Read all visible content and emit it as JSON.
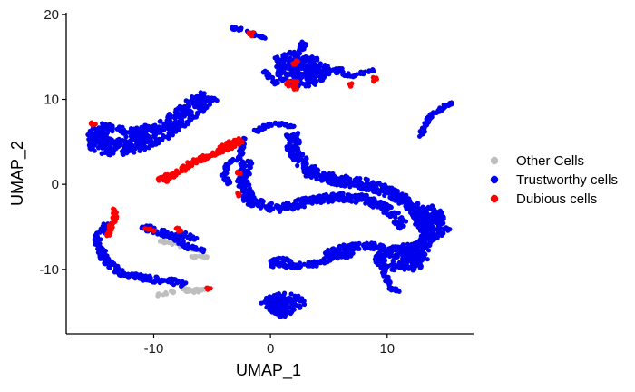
{
  "chart_data": {
    "type": "scatter",
    "title": "",
    "xlabel": "UMAP_1",
    "ylabel": "UMAP_2",
    "xlim": [
      -17.5,
      17.4
    ],
    "ylim": [
      -17.6,
      20.2
    ],
    "xticks": [
      -10,
      0,
      10
    ],
    "yticks": [
      -10,
      0,
      10,
      20
    ],
    "grid": false,
    "legend_position": "right",
    "point_size": 2.6,
    "series": [
      {
        "name": "Other Cells",
        "color": "#bebebe",
        "clusters": [
          {
            "shape": "path",
            "points": [
              [
                -7.7,
                -12.4
              ],
              [
                -6.5,
                -12.5
              ],
              [
                -5.6,
                -12.3
              ]
            ],
            "width": 0.5
          },
          {
            "shape": "path",
            "points": [
              [
                -9.5,
                -6.6
              ],
              [
                -8.2,
                -7.0
              ],
              [
                -7.0,
                -7.4
              ],
              [
                -6.0,
                -7.8
              ]
            ],
            "width": 0.4
          },
          {
            "shape": "path",
            "points": [
              [
                -9.7,
                -13.0
              ],
              [
                -9.0,
                -12.8
              ],
              [
                -8.3,
                -12.6
              ]
            ],
            "width": 0.3
          },
          {
            "shape": "path",
            "points": [
              [
                -6.8,
                -8.5
              ],
              [
                -5.6,
                -8.6
              ],
              [
                -5.2,
                -8.5
              ]
            ],
            "width": 0.3
          }
        ]
      },
      {
        "name": "Trustworthy cells",
        "color": "#0000ee",
        "clusters": [
          {
            "shape": "path",
            "points": [
              [
                -15.2,
                5.2
              ],
              [
                -14.5,
                4.5
              ],
              [
                -13.0,
                4.4
              ],
              [
                -11.3,
                4.9
              ],
              [
                -9.5,
                6.0
              ],
              [
                -8.2,
                7.3
              ],
              [
                -7.0,
                8.7
              ],
              [
                -5.6,
                10.0
              ],
              [
                -5.2,
                10.5
              ]
            ],
            "width": 2.0
          },
          {
            "shape": "path",
            "points": [
              [
                -14.6,
                7.0
              ],
              [
                -13.0,
                6.4
              ],
              [
                -11.5,
                6.2
              ],
              [
                -10.0,
                6.9
              ]
            ],
            "width": 0.8
          },
          {
            "shape": "blob",
            "cx": -14.8,
            "cy": 5.8,
            "rx": 0.9,
            "ry": 1.0
          },
          {
            "shape": "path",
            "points": [
              [
                -14.0,
                -4.6
              ],
              [
                -14.9,
                -6.4
              ],
              [
                -14.2,
                -8.8
              ],
              [
                -12.7,
                -10.6
              ],
              [
                -10.5,
                -11.1
              ],
              [
                -8.4,
                -11.4
              ],
              [
                -7.4,
                -11.9
              ]
            ],
            "width": 0.7
          },
          {
            "shape": "path",
            "points": [
              [
                -11.0,
                -5.0
              ],
              [
                -9.8,
                -5.4
              ],
              [
                -8.7,
                -6.0
              ],
              [
                -7.5,
                -6.8
              ],
              [
                -6.7,
                -7.5
              ],
              [
                -5.6,
                -7.9
              ]
            ],
            "width": 0.7
          },
          {
            "shape": "path",
            "points": [
              [
                -8.3,
                -6.2
              ],
              [
                -7.4,
                -5.9
              ],
              [
                -6.3,
                -6.5
              ]
            ],
            "width": 0.5
          },
          {
            "shape": "path",
            "points": [
              [
                -3.3,
                18.5
              ],
              [
                -2.0,
                18.0
              ],
              [
                -0.5,
                17.1
              ]
            ],
            "width": 0.4
          },
          {
            "shape": "blob",
            "cx": 2.8,
            "cy": 13.3,
            "rx": 2.4,
            "ry": 1.8
          },
          {
            "shape": "path",
            "points": [
              [
                0.5,
                14.6
              ],
              [
                2.2,
                15.5
              ],
              [
                3.0,
                16.6
              ]
            ],
            "width": 0.7
          },
          {
            "shape": "path",
            "points": [
              [
                3.0,
                12.9
              ],
              [
                4.8,
                13.2
              ],
              [
                6.3,
                13.4
              ]
            ],
            "width": 0.6
          },
          {
            "shape": "path",
            "points": [
              [
                6.2,
                13.0
              ],
              [
                7.4,
                12.8
              ],
              [
                8.2,
                13.3
              ],
              [
                8.8,
                13.5
              ]
            ],
            "width": 0.4
          },
          {
            "shape": "path",
            "points": [
              [
                0.6,
                11.8
              ],
              [
                0.0,
                12.5
              ],
              [
                -0.6,
                13.4
              ]
            ],
            "width": 0.4
          },
          {
            "shape": "path",
            "points": [
              [
                12.8,
                5.5
              ],
              [
                13.2,
                6.8
              ],
              [
                13.7,
                8.0
              ],
              [
                14.7,
                9.0
              ],
              [
                15.6,
                9.7
              ]
            ],
            "width": 0.4
          },
          {
            "shape": "path",
            "points": [
              [
                -1.3,
                6.2
              ],
              [
                -0.2,
                7.0
              ],
              [
                1.0,
                7.1
              ],
              [
                2.0,
                6.7
              ]
            ],
            "width": 0.4
          },
          {
            "shape": "path",
            "points": [
              [
                1.8,
                6.0
              ],
              [
                2.0,
                4.1
              ],
              [
                2.9,
                2.2
              ],
              [
                4.3,
                0.9
              ],
              [
                6.3,
                0.4
              ],
              [
                8.5,
                0.0
              ],
              [
                10.5,
                -1.1
              ],
              [
                12.0,
                -2.3
              ],
              [
                13.0,
                -4.1
              ],
              [
                13.6,
                -5.9
              ],
              [
                13.0,
                -7.7
              ]
            ],
            "width": 1.2
          },
          {
            "shape": "path",
            "points": [
              [
                3.0,
                1.3
              ],
              [
                6.0,
                0.1
              ],
              [
                9.0,
                -0.6
              ]
            ],
            "width": 0.6
          },
          {
            "shape": "path",
            "points": [
              [
                -2.0,
                2.8
              ],
              [
                -2.4,
                0.2
              ],
              [
                -1.8,
                -1.9
              ],
              [
                0.5,
                -2.9
              ],
              [
                2.0,
                -2.4
              ],
              [
                4.4,
                -1.7
              ],
              [
                6.4,
                -1.5
              ],
              [
                8.5,
                -1.8
              ],
              [
                10.4,
                -3.3
              ],
              [
                11.5,
                -5.0
              ]
            ],
            "width": 1.0
          },
          {
            "shape": "path",
            "points": [
              [
                -2.3,
                5.7
              ],
              [
                -2.6,
                3.2
              ],
              [
                -3.7,
                2.5
              ],
              [
                -4.0,
                1.0
              ],
              [
                -3.5,
                0.0
              ]
            ],
            "width": 0.4
          },
          {
            "shape": "blob",
            "cx": 13.6,
            "cy": -4.2,
            "rx": 1.3,
            "ry": 1.7
          },
          {
            "shape": "blob",
            "cx": 11.2,
            "cy": -8.8,
            "rx": 2.3,
            "ry": 1.5
          },
          {
            "shape": "path",
            "points": [
              [
                4.5,
                -8.2
              ],
              [
                6.5,
                -7.4
              ],
              [
                8.5,
                -7.2
              ],
              [
                10.5,
                -7.6
              ],
              [
                12.6,
                -7.2
              ],
              [
                14.0,
                -6.2
              ],
              [
                15.2,
                -5.0
              ]
            ],
            "width": 0.7
          },
          {
            "shape": "path",
            "points": [
              [
                0.0,
                -9.4
              ],
              [
                2.2,
                -9.6
              ],
              [
                4.0,
                -9.3
              ],
              [
                5.8,
                -8.4
              ],
              [
                7.2,
                -8.2
              ]
            ],
            "width": 0.6
          },
          {
            "shape": "path",
            "points": [
              [
                -0.1,
                -9.2
              ],
              [
                0.8,
                -8.8
              ],
              [
                1.8,
                -9.0
              ]
            ],
            "width": 0.4
          },
          {
            "shape": "path",
            "points": [
              [
                9.6,
                -10.0
              ],
              [
                10.0,
                -11.2
              ],
              [
                10.3,
                -12.3
              ],
              [
                11.1,
                -12.5
              ]
            ],
            "width": 0.4
          },
          {
            "shape": "blob",
            "cx": 1.1,
            "cy": -13.9,
            "rx": 1.9,
            "ry": 1.1
          },
          {
            "shape": "path",
            "points": [
              [
                -0.2,
                -13.5
              ],
              [
                0.0,
                -14.8
              ],
              [
                1.0,
                -15.5
              ],
              [
                2.1,
                -14.7
              ]
            ],
            "width": 0.4
          }
        ]
      },
      {
        "name": "Dubious cells",
        "color": "#ff0000",
        "clusters": [
          {
            "shape": "path",
            "points": [
              [
                -9.2,
                0.7
              ],
              [
                -8.0,
                1.3
              ],
              [
                -6.8,
                2.5
              ],
              [
                -5.4,
                3.3
              ],
              [
                -4.2,
                3.9
              ],
              [
                -3.2,
                4.6
              ],
              [
                -2.5,
                5.3
              ]
            ],
            "width": 0.6
          },
          {
            "shape": "path",
            "points": [
              [
                -4.5,
                4.3
              ],
              [
                -3.5,
                4.9
              ],
              [
                -2.6,
                5.3
              ]
            ],
            "width": 0.4
          },
          {
            "shape": "blob",
            "cx": -9.1,
            "cy": 0.6,
            "rx": 0.6,
            "ry": 0.4
          },
          {
            "shape": "blob",
            "cx": -15.2,
            "cy": 7.2,
            "rx": 0.3,
            "ry": 0.3
          },
          {
            "shape": "path",
            "points": [
              [
                -13.3,
                -2.8
              ],
              [
                -13.3,
                -3.8
              ],
              [
                -13.6,
                -4.7
              ],
              [
                -13.9,
                -6.1
              ]
            ],
            "width": 0.4
          },
          {
            "shape": "path",
            "points": [
              [
                -10.9,
                -5.2
              ],
              [
                -10.4,
                -5.3
              ],
              [
                -9.9,
                -5.4
              ]
            ],
            "width": 0.2
          },
          {
            "shape": "blob",
            "cx": -7.8,
            "cy": -5.3,
            "rx": 0.3,
            "ry": 0.3
          },
          {
            "shape": "blob",
            "cx": -1.7,
            "cy": 17.7,
            "rx": 0.3,
            "ry": 0.3
          },
          {
            "shape": "blob",
            "cx": 1.9,
            "cy": 11.7,
            "rx": 0.6,
            "ry": 0.6
          },
          {
            "shape": "blob",
            "cx": 2.1,
            "cy": 14.3,
            "rx": 0.3,
            "ry": 0.3
          },
          {
            "shape": "blob",
            "cx": 9.0,
            "cy": 12.3,
            "rx": 0.3,
            "ry": 0.4
          },
          {
            "shape": "blob",
            "cx": 6.9,
            "cy": 11.7,
            "rx": 0.2,
            "ry": 0.2
          },
          {
            "shape": "blob",
            "cx": -2.7,
            "cy": 1.4,
            "rx": 0.2,
            "ry": 0.2
          },
          {
            "shape": "blob",
            "cx": -2.8,
            "cy": -1.2,
            "rx": 0.2,
            "ry": 0.2
          },
          {
            "shape": "blob",
            "cx": -5.3,
            "cy": -12.2,
            "rx": 0.2,
            "ry": 0.2
          }
        ]
      }
    ]
  }
}
